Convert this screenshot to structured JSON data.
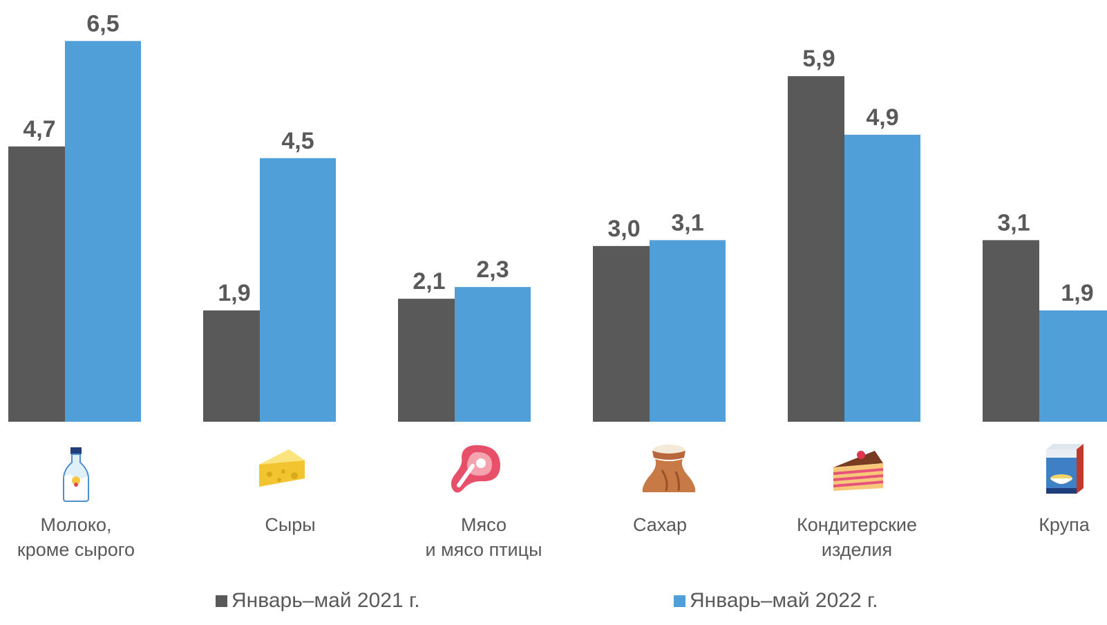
{
  "chart_data": {
    "type": "bar",
    "categories": [
      [
        "Молоко,",
        "кроме сырого"
      ],
      [
        "Сыры"
      ],
      [
        "Мясо",
        "и мясо птицы"
      ],
      [
        "Сахар"
      ],
      [
        "Кондитерские",
        "изделия"
      ],
      [
        "Крупа"
      ]
    ],
    "category_icons": [
      "milk-bottle-icon",
      "cheese-icon",
      "meat-icon",
      "sugar-sack-icon",
      "cake-icon",
      "cereal-box-icon"
    ],
    "series": [
      {
        "name": "Январь–май 2021 г.",
        "values": [
          4.7,
          1.9,
          2.1,
          3.0,
          5.9,
          3.1
        ],
        "labels": [
          "4,7",
          "1,9",
          "2,1",
          "3,0",
          "5,9",
          "3,1"
        ],
        "color": "#595959"
      },
      {
        "name": "Январь–май 2022 г.",
        "values": [
          6.5,
          4.5,
          2.3,
          3.1,
          4.9,
          1.9
        ],
        "labels": [
          "6,5",
          "4,5",
          "2,3",
          "3,1",
          "4,9",
          "1,9"
        ],
        "color": "#509FD8"
      }
    ],
    "ylim": [
      0,
      7.2
    ],
    "legend": "bottom",
    "grid": false
  }
}
